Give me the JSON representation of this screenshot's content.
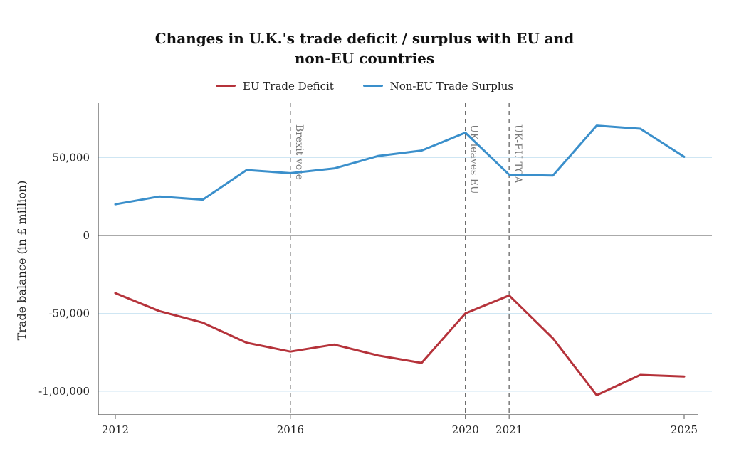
{
  "chart_data": {
    "type": "line",
    "title_line1": "Changes in U.K.'s trade deficit / surplus with EU and",
    "title_line2": "non-EU countries",
    "xlabel": "",
    "ylabel": "Trade balance (in £ million)",
    "xlim": [
      2012,
      2025
    ],
    "ylim": [
      -110000,
      85000
    ],
    "x_ticks": [
      2012,
      2016,
      2020,
      2021,
      2025
    ],
    "y_ticks": [
      {
        "value": 50000,
        "label": "50,000"
      },
      {
        "value": 0,
        "label": "0"
      },
      {
        "value": -50000,
        "label": "-50,000"
      },
      {
        "value": -100000,
        "label": "-1,00,000"
      }
    ],
    "grid": "horizontal",
    "legend_position": "top-center",
    "x": [
      2012,
      2013,
      2014,
      2015,
      2016,
      2017,
      2018,
      2019,
      2020,
      2021,
      2022,
      2023,
      2024,
      2025
    ],
    "series": [
      {
        "name": "EU Trade Deficit",
        "color": "#b5323a",
        "values": [
          -37000,
          -48500,
          -56000,
          -68800,
          -74500,
          -70000,
          -77000,
          -81800,
          -50000,
          -38500,
          -66000,
          -102500,
          -89500,
          -90500
        ]
      },
      {
        "name": "Non-EU Trade Surplus",
        "color": "#3a8fcb",
        "values": [
          20000,
          25000,
          23000,
          42000,
          40000,
          43000,
          51000,
          54500,
          66000,
          39000,
          38500,
          70500,
          68500,
          50500
        ]
      }
    ],
    "annotations": [
      {
        "x": 2016,
        "label": "Brexit vote"
      },
      {
        "x": 2020,
        "label": "UK leaves EU"
      },
      {
        "x": 2021,
        "label": "UK-EU TCA"
      }
    ]
  }
}
